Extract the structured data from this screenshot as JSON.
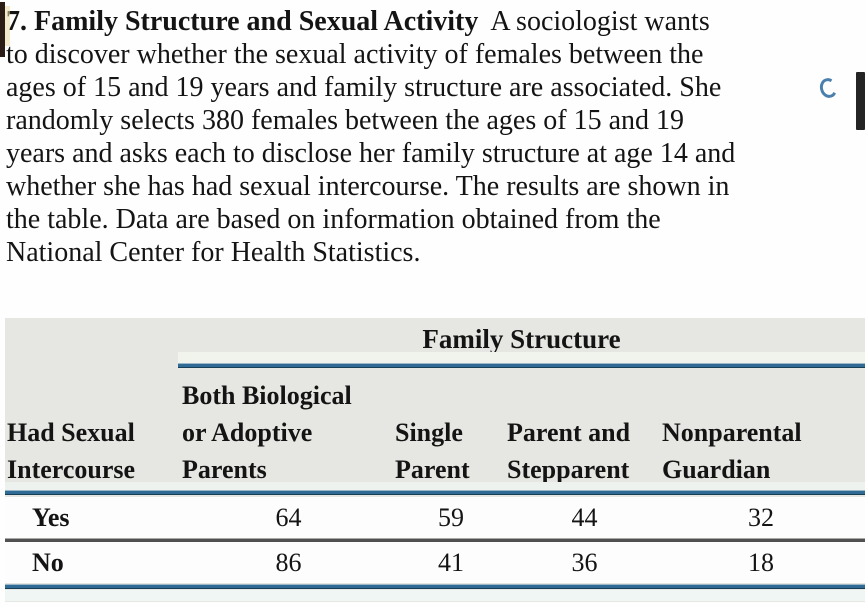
{
  "problem": {
    "heading_bold": "7. Family Structure and Sexual Activity",
    "heading_rest": "A sociologist wants",
    "body_lines": [
      "to discover whether the sexual activity of females between the",
      "ages of 15 and 19 years and family structure are associated. She",
      "randomly selects 380 females between the ages of 15 and 19",
      "years and asks each to disclose her family structure at age 14 and",
      "whether she has had sexual intercourse. The results are shown in",
      "the table. Data are based on information obtained from the",
      "National Center for Health Statistics."
    ]
  },
  "table": {
    "group_header": "Family Structure",
    "row_header_lines": [
      "Had Sexual",
      "Intercourse"
    ],
    "columns": [
      {
        "lines": [
          "Both Biological",
          "or Adoptive",
          "Parents"
        ]
      },
      {
        "lines": [
          "Single",
          "Parent"
        ]
      },
      {
        "lines": [
          "Parent and",
          "Stepparent"
        ]
      },
      {
        "lines": [
          "Nonparental",
          "Guardian"
        ]
      }
    ],
    "rows": [
      {
        "label": "Yes",
        "values": [
          "64",
          "59",
          "44",
          "32"
        ]
      },
      {
        "label": "No",
        "values": [
          "86",
          "41",
          "36",
          "18"
        ]
      }
    ],
    "total_sample_size": "380"
  },
  "colors": {
    "table_background": "#e6e7e2",
    "rule_blue": "#2f6b94",
    "row_separator_gray": "#515151",
    "text": "#141414"
  }
}
